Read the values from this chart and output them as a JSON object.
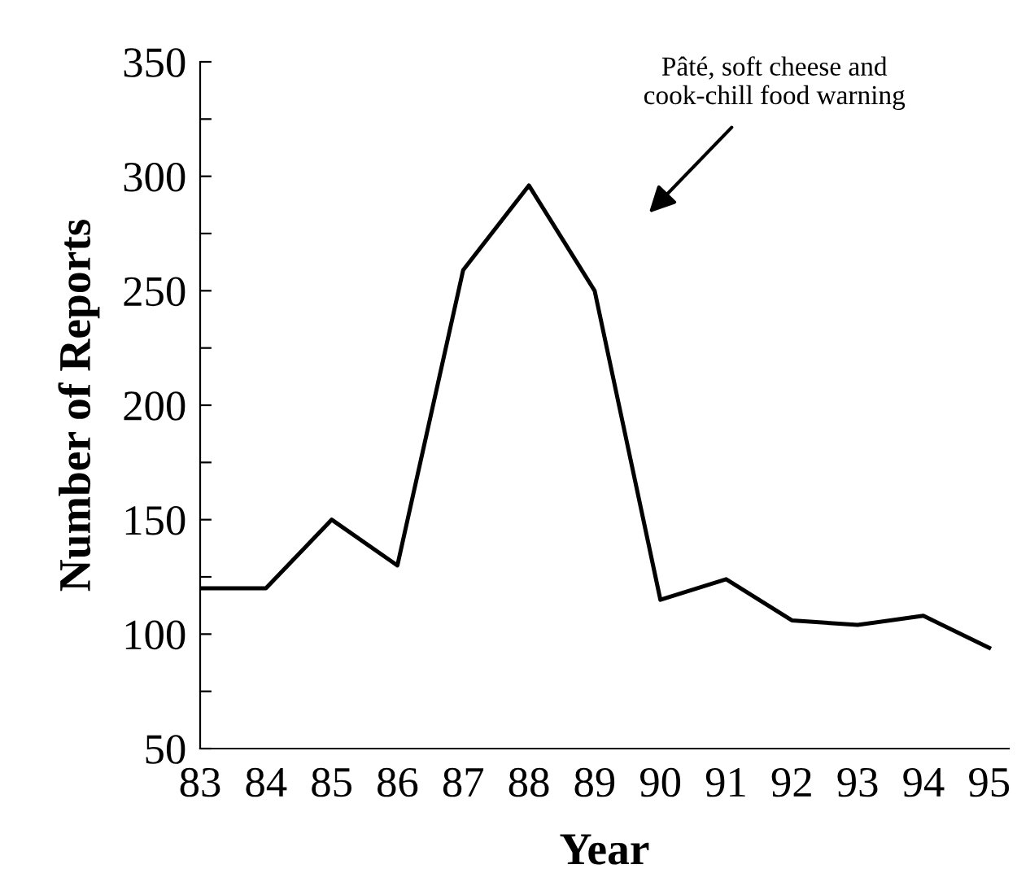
{
  "chart_data": {
    "type": "line",
    "xlabel": "Year",
    "ylabel": "Number of Reports",
    "x": [
      83,
      84,
      85,
      86,
      87,
      88,
      89,
      90,
      91,
      92,
      93,
      94,
      95
    ],
    "series": [
      {
        "color": "#000000",
        "values": [
          120,
          120,
          150,
          130,
          259,
          296,
          250,
          115,
          124,
          106,
          104,
          108,
          94
        ]
      }
    ],
    "xlim": [
      83,
      95.3
    ],
    "ylim": [
      50,
      350
    ],
    "xticks": [
      83,
      84,
      85,
      86,
      87,
      88,
      89,
      90,
      91,
      92,
      93,
      94,
      95
    ],
    "yticks": [
      50,
      {
        "value": 75,
        "label": null
      },
      100,
      {
        "value": 125,
        "label": null
      },
      150,
      {
        "value": 175,
        "label": null
      },
      200,
      {
        "value": 225,
        "label": null
      },
      250,
      {
        "value": 275,
        "label": null
      },
      300,
      {
        "value": 325,
        "label": null
      },
      350
    ],
    "annotations": [
      "Pâté, soft cheese and\ncook-chill food warning"
    ],
    "grid": false,
    "legend": false,
    "marker": "none",
    "line_style": "solid"
  }
}
